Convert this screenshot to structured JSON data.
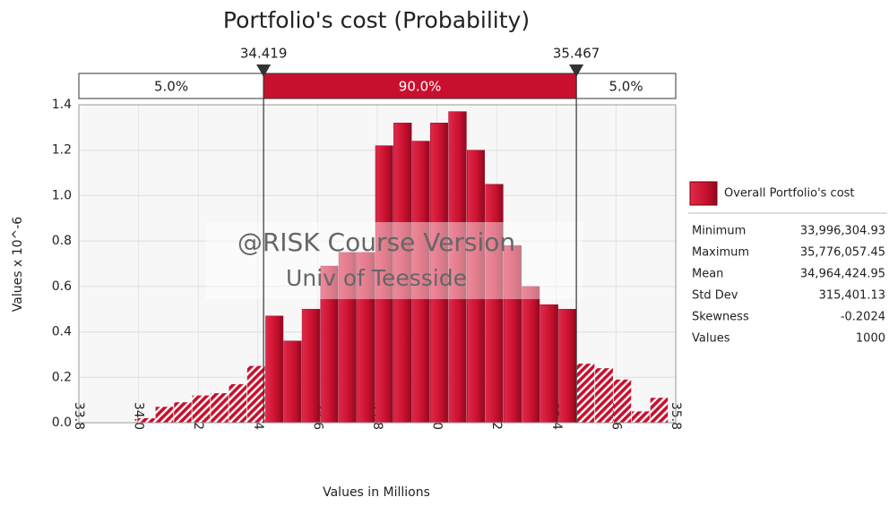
{
  "chart_data": {
    "type": "histogram",
    "title": "Portfolio's cost (Probability)",
    "x_label": "Values in Millions",
    "y_label": "Values x 10^-6",
    "bins": [
      33.996,
      34.057,
      34.119,
      34.18,
      34.242,
      34.303,
      34.364,
      34.426,
      34.487,
      34.548,
      34.61,
      34.671,
      34.732,
      34.794,
      34.855,
      34.917,
      34.978,
      35.039,
      35.101,
      35.162,
      35.224,
      35.285,
      35.346,
      35.408,
      35.469,
      35.53,
      35.592,
      35.653,
      35.715,
      35.776
    ],
    "values": [
      0.02,
      0.07,
      0.09,
      0.12,
      0.13,
      0.17,
      0.25,
      0.47,
      0.36,
      0.5,
      0.69,
      0.75,
      0.75,
      1.22,
      1.32,
      1.24,
      1.32,
      1.37,
      1.2,
      1.05,
      0.78,
      0.6,
      0.52,
      0.5,
      0.26,
      0.24,
      0.19,
      0.05,
      0.11
    ],
    "color": "#c8102e",
    "xlim": [
      33.8,
      35.8
    ],
    "xticks": [
      33.8,
      {
        "value": 34,
        "label": "34.0"
      },
      34.2,
      34.4,
      34.6,
      34.8,
      {
        "value": 35,
        "label": "35.0"
      },
      35.2,
      35.4,
      35.6,
      35.8
    ],
    "ylim": [
      0,
      1.4
    ],
    "yticks": [
      {
        "value": 0,
        "label": "0.0"
      },
      0.2,
      0.4,
      0.6,
      0.8,
      {
        "value": 1,
        "label": "1.0"
      },
      1.2,
      1.4
    ],
    "grid": true,
    "delimiters": [
      34.419,
      35.467
    ],
    "probability_bands": {
      "values": [
        5,
        90,
        5
      ],
      "value_labels": [
        "5.0%",
        "90.0%",
        "5.0%"
      ]
    },
    "legend": {
      "name": "Overall Portfolio's cost",
      "position": "right"
    },
    "statistics": [
      [
        "Minimum",
        "33,996,304.93"
      ],
      [
        "Maximum",
        "35,776,057.45"
      ],
      [
        "Mean",
        "34,964,424.95"
      ],
      [
        "Std Dev",
        "315,401.13"
      ],
      [
        "Skewness",
        "-0.2024"
      ],
      [
        "Values",
        "1000"
      ]
    ],
    "watermark": [
      "@RISK Course Version",
      "Univ of Teesside"
    ]
  }
}
